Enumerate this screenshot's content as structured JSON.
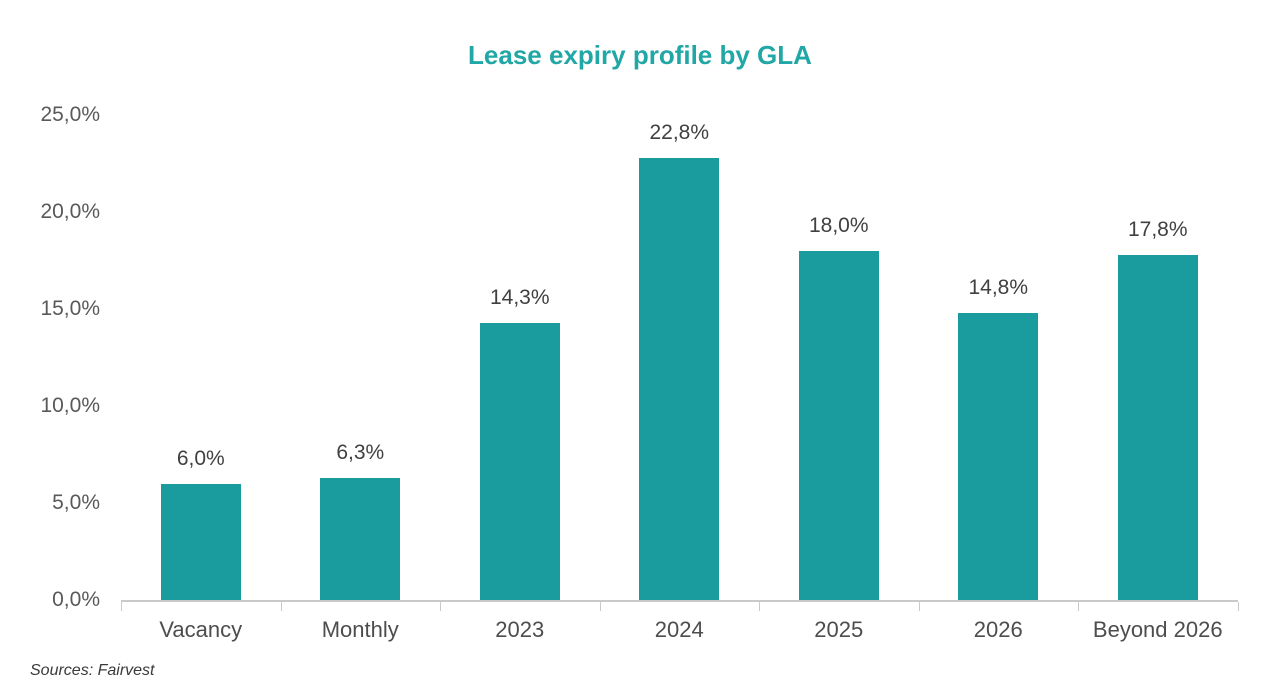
{
  "chart_data": {
    "type": "bar",
    "title": "Lease expiry profile by GLA",
    "categories": [
      "Vacancy",
      "Monthly",
      "2023",
      "2024",
      "2025",
      "2026",
      "Beyond 2026"
    ],
    "values": [
      6.0,
      6.3,
      14.3,
      22.8,
      18.0,
      14.8,
      17.8
    ],
    "value_labels": [
      "6,0%",
      "6,3%",
      "14,3%",
      "22,8%",
      "18,0%",
      "14,8%",
      "17,8%"
    ],
    "y_ticks": [
      {
        "value": 25,
        "label": "25,0%"
      },
      {
        "value": 20,
        "label": "20,0%"
      },
      {
        "value": 15,
        "label": "15,0%"
      },
      {
        "value": 10,
        "label": "10,0%"
      },
      {
        "value": 5,
        "label": "5,0%"
      },
      {
        "value": 0,
        "label": "0,0%"
      }
    ],
    "ylim": [
      0,
      25
    ],
    "xlabel": "",
    "ylabel": "",
    "grid": false,
    "legend": false,
    "decimal_separator": ",",
    "bar_color": "#1a9b9d",
    "title_color": "#22a7a7",
    "axis_color": "#c9c9c9",
    "source_note": "Sources: Fairvest"
  }
}
